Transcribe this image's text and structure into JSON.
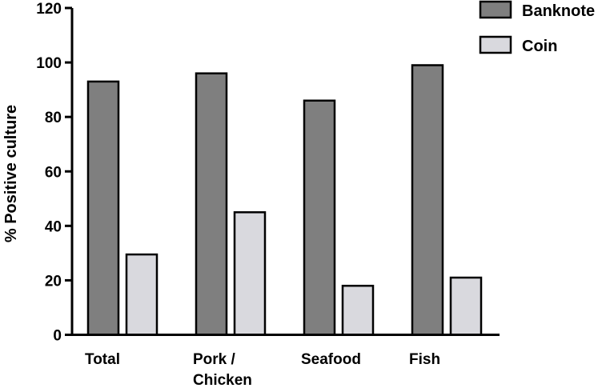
{
  "chart_data": {
    "type": "bar",
    "categories": [
      "Total",
      "Pork /\nChicken",
      "Seafood",
      "Fish"
    ],
    "series": [
      {
        "name": "Banknote",
        "values": [
          93,
          96,
          86,
          99
        ],
        "color": "#7f7f7f"
      },
      {
        "name": "Coin",
        "values": [
          29.5,
          45,
          18,
          21
        ],
        "color": "#d9d9de"
      }
    ],
    "title": "",
    "xlabel": "",
    "ylabel": "% Positive culture",
    "ylim": [
      0,
      120
    ],
    "yticks": [
      0,
      20,
      40,
      60,
      80,
      100,
      120
    ],
    "grid": false,
    "legend_position": "top-right"
  }
}
